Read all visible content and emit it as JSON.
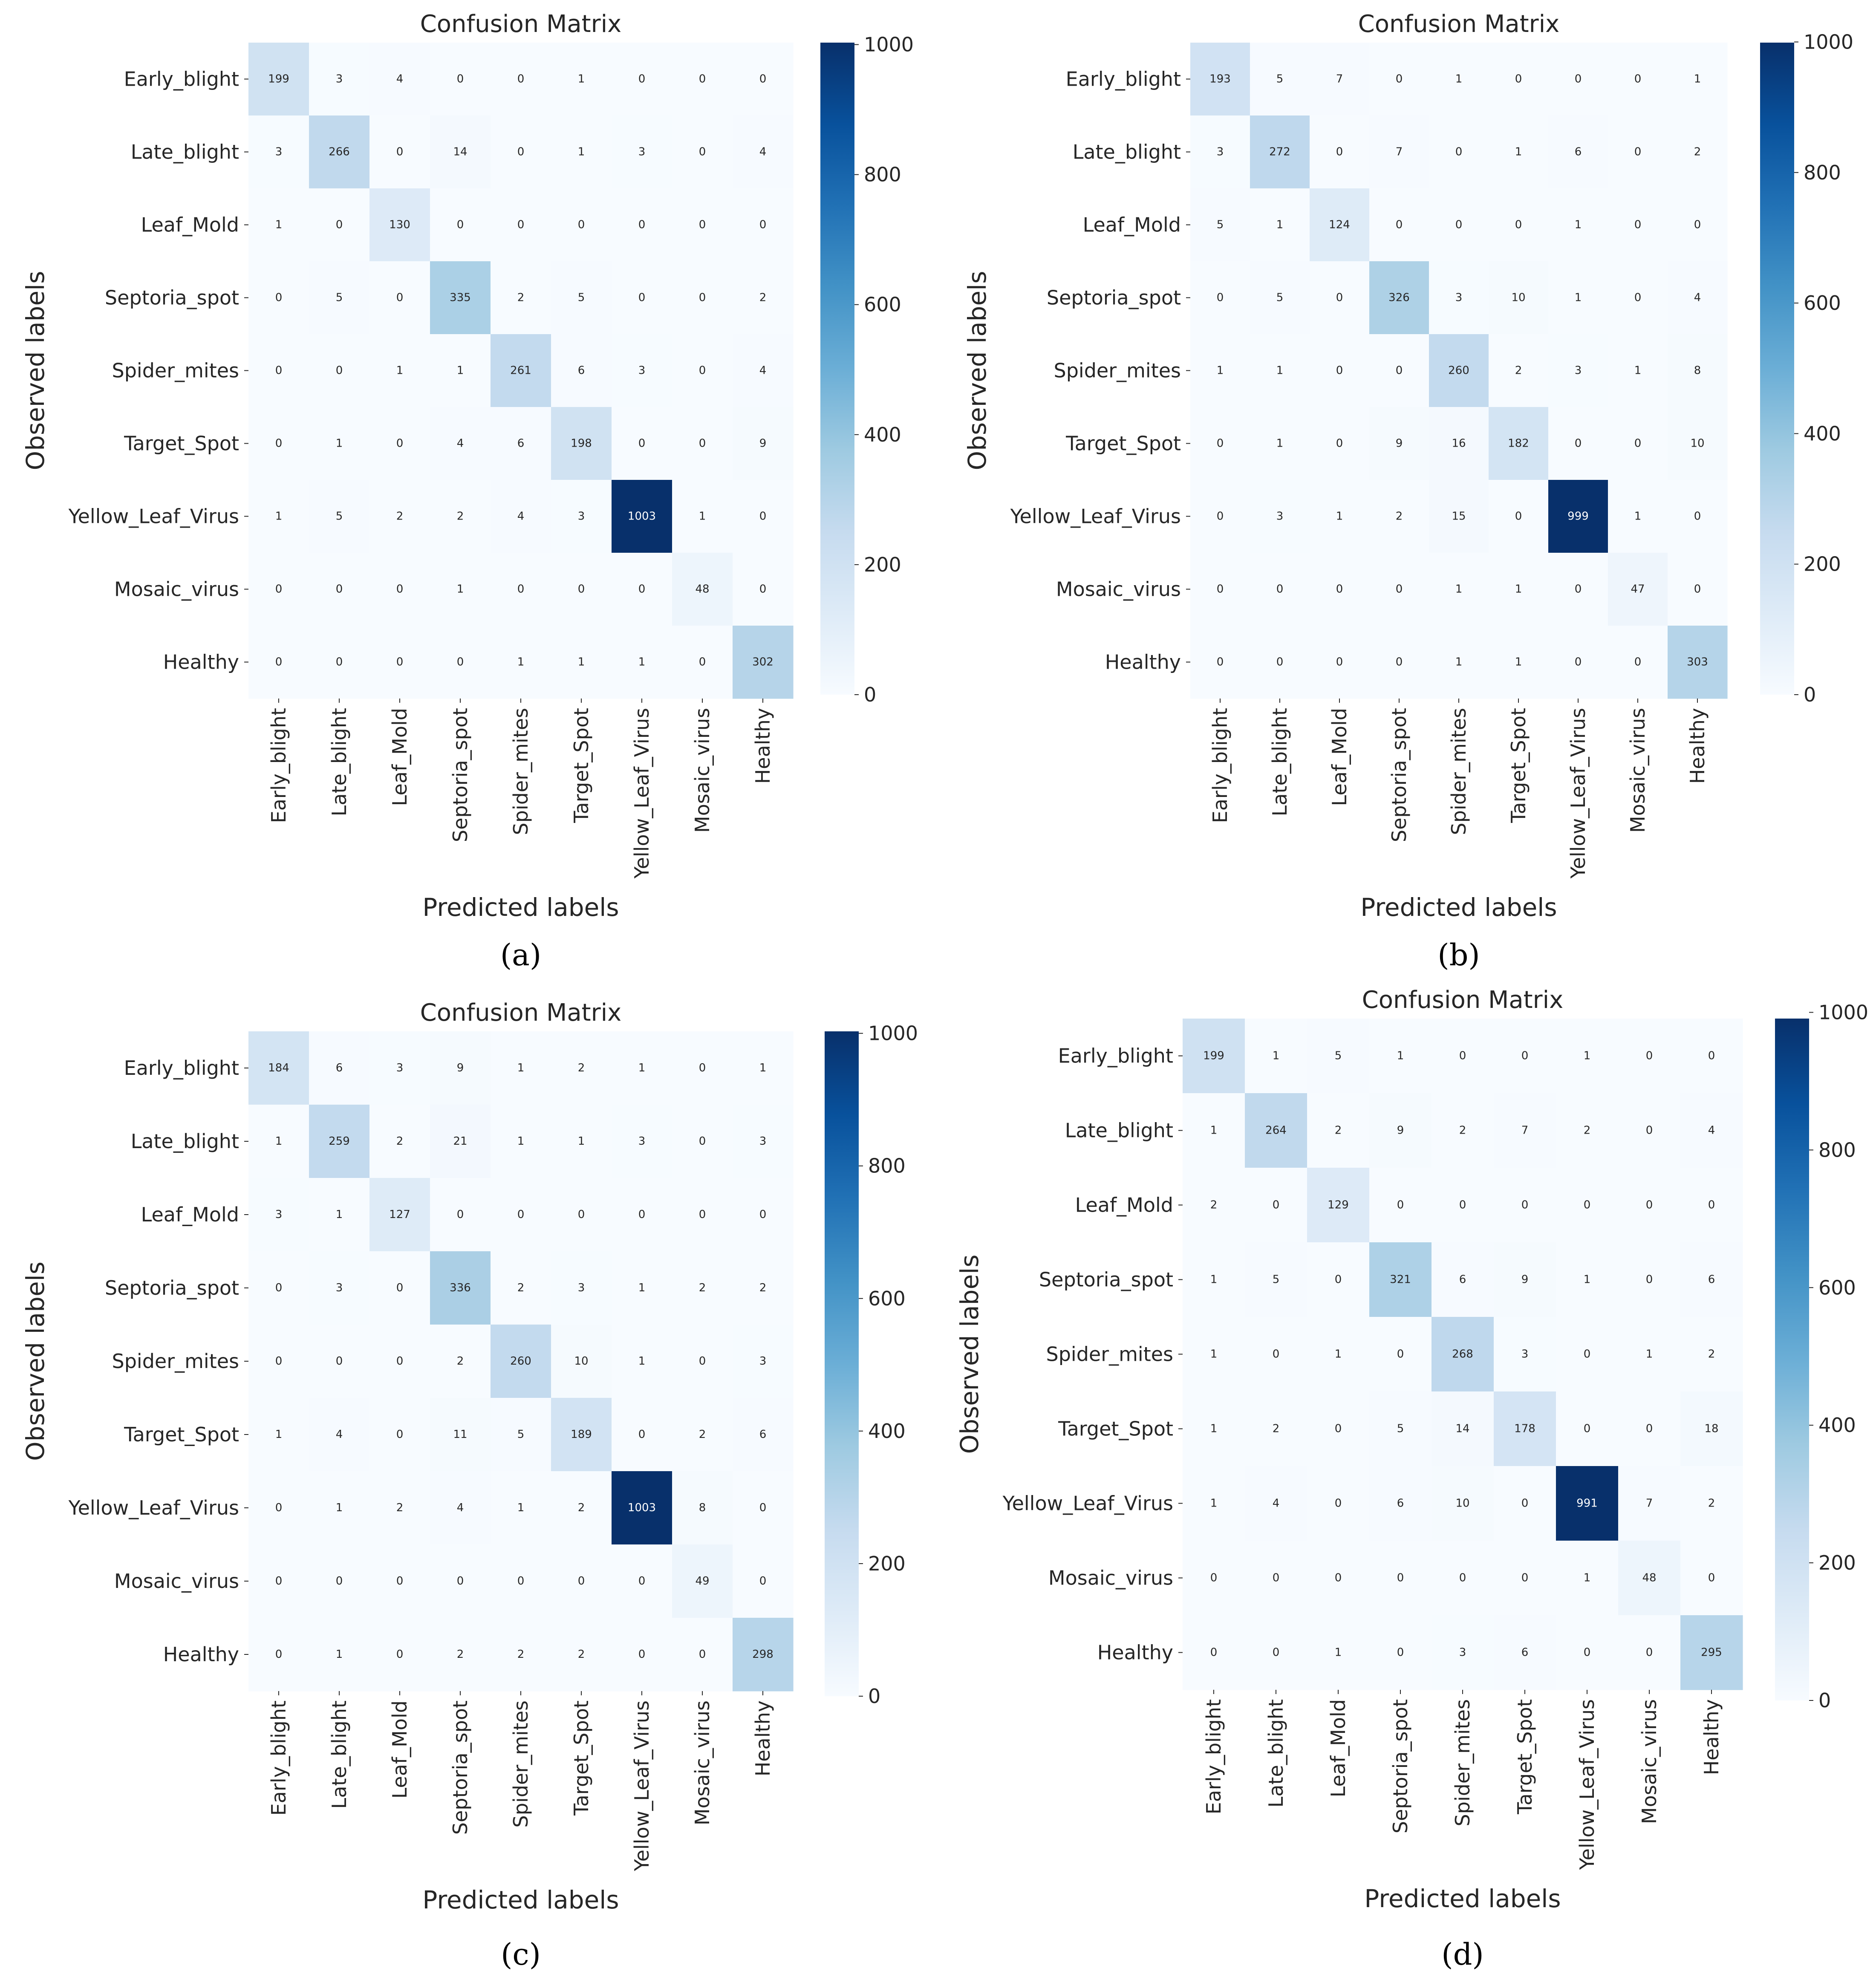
{
  "chart_data": [
    {
      "type": "heatmap",
      "title": "Confusion Matrix",
      "caption": "(a)",
      "xlabel": "Predicted labels",
      "ylabel": "Observed labels",
      "categories": [
        "Early_blight",
        "Late_blight",
        "Leaf_Mold",
        "Septoria_spot",
        "Spider_mites",
        "Target_Spot",
        "Yellow_Leaf_Virus",
        "Mosaic_virus",
        "Healthy"
      ],
      "y_tick_labels": [
        "Early_blight",
        "Late_blight",
        "Leaf_Mold",
        "Septoria_spot",
        "Spider_mites",
        "Target_Spot",
        "Yellow_Leaf_Virus",
        "Mosaic_virus",
        "Healthy"
      ],
      "matrix": [
        [
          199,
          3,
          4,
          0,
          0,
          1,
          0,
          0,
          0
        ],
        [
          3,
          266,
          0,
          14,
          0,
          1,
          3,
          0,
          4
        ],
        [
          1,
          0,
          130,
          0,
          0,
          0,
          0,
          0,
          0
        ],
        [
          0,
          5,
          0,
          335,
          2,
          5,
          0,
          0,
          2
        ],
        [
          0,
          0,
          1,
          1,
          261,
          6,
          3,
          0,
          4
        ],
        [
          0,
          1,
          0,
          4,
          6,
          198,
          0,
          0,
          9
        ],
        [
          1,
          5,
          2,
          2,
          4,
          3,
          1003,
          1,
          0
        ],
        [
          0,
          0,
          0,
          1,
          0,
          0,
          0,
          48,
          0
        ],
        [
          0,
          0,
          0,
          0,
          1,
          1,
          1,
          0,
          302
        ]
      ],
      "colorbar": {
        "min": 0,
        "max": 1003,
        "ticks": [
          0,
          200,
          400,
          600,
          800,
          1000
        ],
        "tick_labels": [
          "0",
          "200",
          "400",
          "600",
          "800",
          "1000"
        ]
      }
    },
    {
      "type": "heatmap",
      "title": "Confusion Matrix",
      "caption": "(b)",
      "xlabel": "Predicted labels",
      "ylabel": "Observed labels",
      "categories": [
        "Early_blight",
        "Late_blight",
        "Leaf_Mold",
        "Septoria_spot",
        "Spider_mites",
        "Target_Spot",
        "Yellow_Leaf_Virus",
        "Mosaic_virus",
        "Healthy"
      ],
      "y_tick_labels": [
        "Early_blight",
        "Late_blight",
        "Leaf_Mold",
        "Septoria_spot",
        "Spider_mites",
        "Target_Spot",
        "Yellow_Leaf_Virus",
        "Mosaic_virus",
        "Healthy"
      ],
      "matrix": [
        [
          193,
          5,
          7,
          0,
          1,
          0,
          0,
          0,
          1
        ],
        [
          3,
          272,
          0,
          7,
          0,
          1,
          6,
          0,
          2
        ],
        [
          5,
          1,
          124,
          0,
          0,
          0,
          1,
          0,
          0
        ],
        [
          0,
          5,
          0,
          326,
          3,
          10,
          1,
          0,
          4
        ],
        [
          1,
          1,
          0,
          0,
          260,
          2,
          3,
          1,
          8
        ],
        [
          0,
          1,
          0,
          9,
          16,
          182,
          0,
          0,
          10
        ],
        [
          0,
          3,
          1,
          2,
          15,
          0,
          999,
          1,
          0
        ],
        [
          0,
          0,
          0,
          0,
          1,
          1,
          0,
          47,
          0
        ],
        [
          0,
          0,
          0,
          0,
          1,
          1,
          0,
          0,
          303
        ]
      ],
      "colorbar": {
        "min": 0,
        "max": 999,
        "ticks": [
          0,
          200,
          400,
          600,
          800,
          1000
        ],
        "tick_labels": [
          "0",
          "200",
          "400",
          "600",
          "800",
          "1000"
        ]
      }
    },
    {
      "type": "heatmap",
      "title": "Confusion Matrix",
      "caption": "(c)",
      "xlabel": "Predicted labels",
      "ylabel": "Observed labels",
      "categories": [
        "Early_blight",
        "Late_blight",
        "Leaf_Mold",
        "Septoria_spot",
        "Spider_mites",
        "Target_Spot",
        "Yellow_Leaf_Virus",
        "Mosaic_virus",
        "Healthy"
      ],
      "y_tick_labels": [
        "Early_blight",
        "Late_blight",
        "Leaf_Mold",
        "Septoria_spot",
        "Spider_mites",
        "Target_Spot",
        "Yellow_Leaf_Virus",
        "Mosaic_virus",
        "Healthy"
      ],
      "matrix": [
        [
          184,
          6,
          3,
          9,
          1,
          2,
          1,
          0,
          1
        ],
        [
          1,
          259,
          2,
          21,
          1,
          1,
          3,
          0,
          3
        ],
        [
          3,
          1,
          127,
          0,
          0,
          0,
          0,
          0,
          0
        ],
        [
          0,
          3,
          0,
          336,
          2,
          3,
          1,
          2,
          2
        ],
        [
          0,
          0,
          0,
          2,
          260,
          10,
          1,
          0,
          3
        ],
        [
          1,
          4,
          0,
          11,
          5,
          189,
          0,
          2,
          6
        ],
        [
          0,
          1,
          2,
          4,
          1,
          2,
          1003,
          8,
          0
        ],
        [
          0,
          0,
          0,
          0,
          0,
          0,
          0,
          49,
          0
        ],
        [
          0,
          1,
          0,
          2,
          2,
          2,
          0,
          0,
          298
        ]
      ],
      "colorbar": {
        "min": 0,
        "max": 1003,
        "ticks": [
          0,
          200,
          400,
          600,
          800,
          1000
        ],
        "tick_labels": [
          "0",
          "200",
          "400",
          "600",
          "800",
          "1000"
        ]
      }
    },
    {
      "type": "heatmap",
      "title": "Confusion Matrix",
      "caption": "(d)",
      "xlabel": "Predicted labels",
      "ylabel": "Observed labels",
      "categories": [
        "Early_blight",
        "Late_blight",
        "Leaf_Mold",
        "Septoria_spot",
        "Spider_mites",
        "Target_Spot",
        "Yellow_Leaf_Virus",
        "Mosaic_virus",
        "Healthy"
      ],
      "y_tick_labels": [
        "Early_blight",
        "Late_blight",
        "Leaf_Mold",
        "Septoria_spot",
        "Spider_mites",
        "Target_Spot",
        "Yellow_Leaf_Virus",
        "Mosaic_virus",
        "Healthy"
      ],
      "matrix": [
        [
          199,
          1,
          5,
          1,
          0,
          0,
          1,
          0,
          0
        ],
        [
          1,
          264,
          2,
          9,
          2,
          7,
          2,
          0,
          4
        ],
        [
          2,
          0,
          129,
          0,
          0,
          0,
          0,
          0,
          0
        ],
        [
          1,
          5,
          0,
          321,
          6,
          9,
          1,
          0,
          6
        ],
        [
          1,
          0,
          1,
          0,
          268,
          3,
          0,
          1,
          2
        ],
        [
          1,
          2,
          0,
          5,
          14,
          178,
          0,
          0,
          18
        ],
        [
          1,
          4,
          0,
          6,
          10,
          0,
          991,
          7,
          2
        ],
        [
          0,
          0,
          0,
          0,
          0,
          0,
          1,
          48,
          0
        ],
        [
          0,
          0,
          1,
          0,
          3,
          6,
          0,
          0,
          295
        ]
      ],
      "colorbar": {
        "min": 0,
        "max": 991,
        "ticks": [
          0,
          200,
          400,
          600,
          800,
          1000
        ],
        "tick_labels": [
          "0",
          "200",
          "400",
          "600",
          "800",
          "1000"
        ]
      }
    }
  ],
  "colormap": [
    "#f7fbff",
    "#deebf7",
    "#c6dbef",
    "#9ecae1",
    "#6baed6",
    "#4292c6",
    "#2171b5",
    "#08519c",
    "#08306b"
  ]
}
